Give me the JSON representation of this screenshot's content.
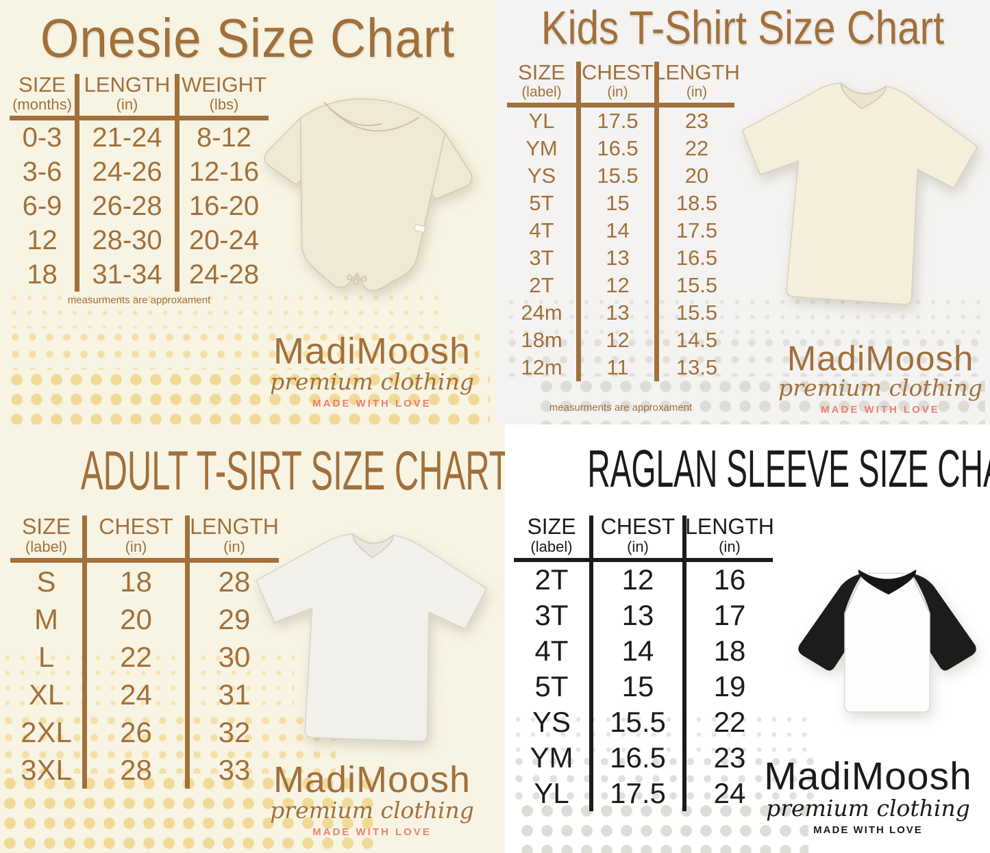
{
  "brand": {
    "name": "MadiMoosh",
    "tagline": "premium clothing",
    "subtagline": "MADE WITH LOVE"
  },
  "colors": {
    "brown": "#a1703b",
    "black": "#1b1b1b",
    "salmon": "#ee7e6d",
    "cream_background": "#f8f4e4",
    "light_gray_background": "#f4f3f1",
    "white_background": "#ffffff",
    "dot_yellow": "#f2dda2",
    "dot_gray": "#e2e1dd"
  },
  "charts": {
    "onesie": {
      "title": "Onesie Size Chart",
      "note": "measurments are approxament",
      "image_alt": "cream baby onesie",
      "columns": [
        {
          "label": "SIZE",
          "unit": "(months)"
        },
        {
          "label": "LENGTH",
          "unit": "(in)"
        },
        {
          "label": "WEIGHT",
          "unit": "(lbs)"
        }
      ],
      "rows": [
        [
          "0-3",
          "21-24",
          "8-12"
        ],
        [
          "3-6",
          "24-26",
          "12-16"
        ],
        [
          "6-9",
          "26-28",
          "16-20"
        ],
        [
          "12",
          "28-30",
          "20-24"
        ],
        [
          "18",
          "31-34",
          "24-28"
        ]
      ]
    },
    "kids": {
      "title": "Kids T-Shirt Size Chart",
      "note": "measurments are approxament",
      "image_alt": "cream kids t-shirt",
      "columns": [
        {
          "label": "SIZE",
          "unit": "(label)"
        },
        {
          "label": "CHEST",
          "unit": "(in)"
        },
        {
          "label": "LENGTH",
          "unit": "(in)"
        }
      ],
      "rows": [
        [
          "YL",
          "17.5",
          "23"
        ],
        [
          "YM",
          "16.5",
          "22"
        ],
        [
          "YS",
          "15.5",
          "20"
        ],
        [
          "5T",
          "15",
          "18.5"
        ],
        [
          "4T",
          "14",
          "17.5"
        ],
        [
          "3T",
          "13",
          "16.5"
        ],
        [
          "2T",
          "12",
          "15.5"
        ],
        [
          "24m",
          "13",
          "15.5"
        ],
        [
          "18m",
          "12",
          "14.5"
        ],
        [
          "12m",
          "11",
          "13.5"
        ]
      ]
    },
    "adult": {
      "title": "ADULT T-SIRT SIZE CHART",
      "image_alt": "white adult t-shirt",
      "columns": [
        {
          "label": "SIZE",
          "unit": "(label)"
        },
        {
          "label": "CHEST",
          "unit": "(in)"
        },
        {
          "label": "LENGTH",
          "unit": "(in)"
        }
      ],
      "rows": [
        [
          "S",
          "18",
          "28"
        ],
        [
          "M",
          "20",
          "29"
        ],
        [
          "L",
          "22",
          "30"
        ],
        [
          "XL",
          "24",
          "31"
        ],
        [
          "2XL",
          "26",
          "32"
        ],
        [
          "3XL",
          "28",
          "33"
        ]
      ]
    },
    "raglan": {
      "title": "RAGLAN SLEEVE SIZE CHART",
      "image_alt": "white raglan tee with black three-quarter sleeves",
      "columns": [
        {
          "label": "SIZE",
          "unit": "(label)"
        },
        {
          "label": "CHEST",
          "unit": "(in)"
        },
        {
          "label": "LENGTH",
          "unit": "(in)"
        }
      ],
      "rows": [
        [
          "2T",
          "12",
          "16"
        ],
        [
          "3T",
          "13",
          "17"
        ],
        [
          "4T",
          "14",
          "18"
        ],
        [
          "5T",
          "15",
          "19"
        ],
        [
          "YS",
          "15.5",
          "22"
        ],
        [
          "YM",
          "16.5",
          "23"
        ],
        [
          "YL",
          "17.5",
          "24"
        ]
      ]
    }
  }
}
